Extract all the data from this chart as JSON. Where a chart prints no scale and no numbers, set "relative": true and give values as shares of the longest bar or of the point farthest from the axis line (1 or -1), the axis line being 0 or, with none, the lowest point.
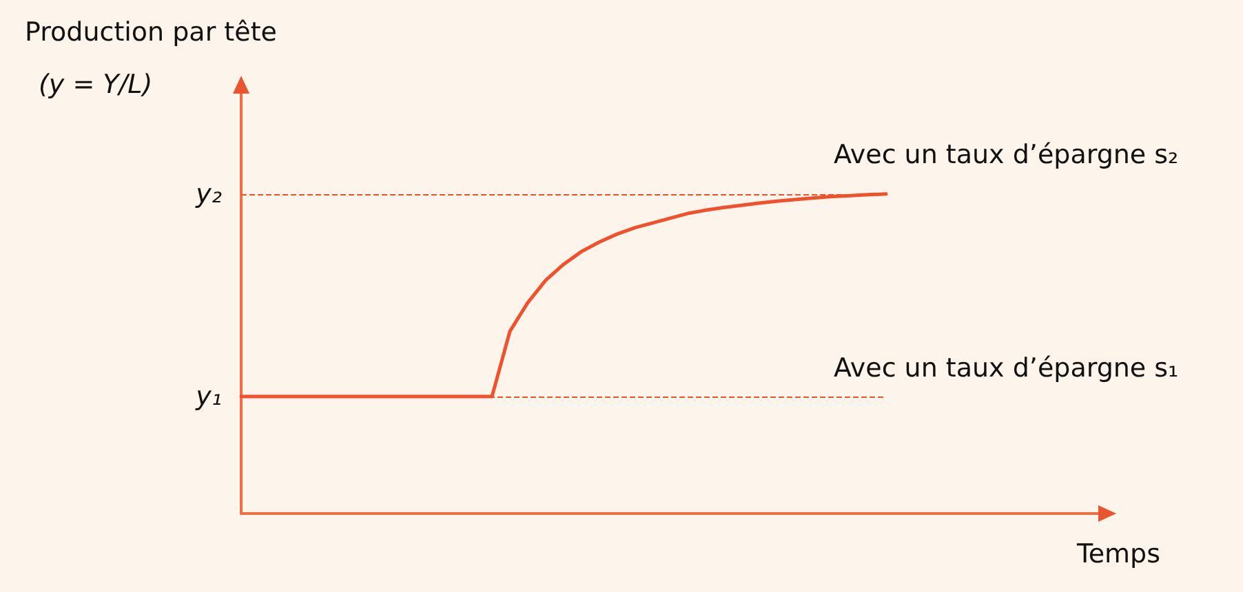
{
  "chart_data": {
    "type": "line",
    "title": "Production par tête",
    "xlabel": "Temps",
    "relative": true,
    "marker": "none",
    "line_style": "solid",
    "categories": [
      null,
      null,
      null,
      null,
      null,
      null,
      null,
      null,
      null,
      null,
      null,
      null,
      null,
      null,
      null,
      null,
      null,
      null,
      null,
      null,
      null,
      null,
      null,
      null,
      null,
      null,
      null,
      null,
      null,
      null,
      null,
      null,
      null,
      null,
      null,
      null,
      null,
      null,
      null,
      null,
      null,
      null,
      null,
      null,
      null,
      null,
      null,
      null,
      null
    ],
    "series": [
      {
        "color": "#f0502a",
        "values": [
          0.366,
          0.366,
          0.366,
          0.366,
          0.366,
          0.366,
          0.366,
          0.366,
          0.366,
          0.366,
          0.366,
          0.366,
          0.366,
          0.366,
          0.366,
          0.57,
          0.66,
          0.73,
          0.78,
          0.82,
          0.85,
          0.875,
          0.895,
          0.91,
          0.925,
          0.94,
          0.95,
          0.958,
          0.965,
          0.972,
          0.978,
          0.983,
          0.988,
          0.992,
          0.995,
          0.998,
          1,
          null,
          null,
          null,
          null,
          null,
          null,
          null,
          null,
          null,
          null,
          null,
          null
        ]
      }
    ],
    "ref_lines": [
      {
        "axis": "y",
        "value": 0.366,
        "label": "y₁",
        "color": "#f0502a",
        "line_style": "dashed"
      },
      {
        "axis": "y",
        "value": 1,
        "label": "y₂",
        "color": "#f0502a",
        "line_style": "dashed"
      }
    ],
    "annotations": [
      "(y = Y/L)",
      "Avec un taux d’épargne s₂",
      "Avec un taux d’épargne s₁"
    ]
  }
}
